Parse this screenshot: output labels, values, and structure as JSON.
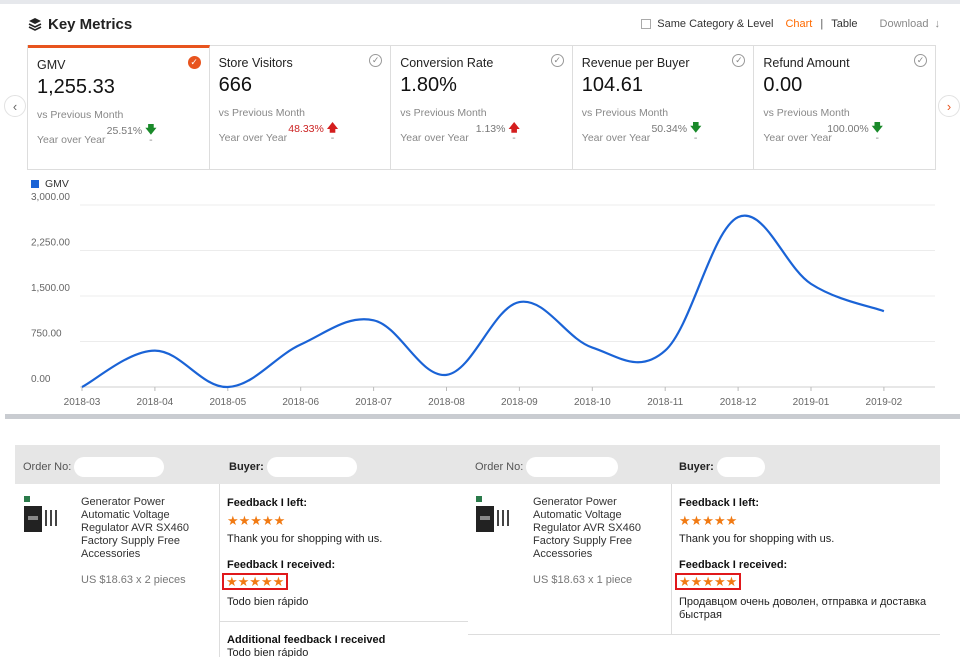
{
  "header": {
    "title": "Key Metrics",
    "same_category_label": "Same Category & Level",
    "chart_tab": "Chart",
    "separator": "|",
    "table_tab": "Table",
    "download_label": "Download",
    "download_icon": "↓"
  },
  "nav": {
    "left_icon": "‹",
    "right_icon": "›"
  },
  "cards": [
    {
      "name": "GMV",
      "value": "1,255.33",
      "vs_label": "vs Previous Month",
      "pct": "25.51%",
      "trend": "down",
      "yoy_label": "Year over Year",
      "yoy_value": "-",
      "selected": true,
      "check": "✓"
    },
    {
      "name": "Store Visitors",
      "value": "666",
      "vs_label": "vs Previous Month",
      "pct": "48.33%",
      "trend": "up",
      "yoy_label": "Year over Year",
      "yoy_value": "-",
      "selected": false,
      "check": "✓"
    },
    {
      "name": "Conversion Rate",
      "value": "1.80%",
      "vs_label": "vs Previous Month",
      "pct": "1.13%",
      "trend": "up",
      "yoy_label": "Year over Year",
      "yoy_value": "-",
      "selected": false,
      "check": "✓"
    },
    {
      "name": "Revenue per Buyer",
      "value": "104.61",
      "vs_label": "vs Previous Month",
      "pct": "50.34%",
      "trend": "down",
      "yoy_label": "Year over Year",
      "yoy_value": "-",
      "selected": false,
      "check": "✓"
    },
    {
      "name": "Refund Amount",
      "value": "0.00",
      "vs_label": "vs Previous Month",
      "pct": "100.00%",
      "trend": "down",
      "yoy_label": "Year over Year",
      "yoy_value": "-",
      "selected": false,
      "check": "✓"
    }
  ],
  "chart_data": {
    "type": "line",
    "x": [
      "2018-03",
      "2018-04",
      "2018-05",
      "2018-06",
      "2018-07",
      "2018-08",
      "2018-09",
      "2018-10",
      "2018-11",
      "2018-12",
      "2019-01",
      "2019-02"
    ],
    "series": [
      {
        "name": "GMV",
        "values": [
          0,
          600,
          0,
          700,
          1100,
          200,
          1400,
          650,
          600,
          2800,
          1700,
          1250
        ]
      }
    ],
    "yticks": [
      "0.00",
      "750.00",
      "1,500.00",
      "2,250.00",
      "3,000.00"
    ],
    "ylim": [
      0,
      3000
    ],
    "grid": true,
    "legend": "top-left",
    "color": "#1a63d6"
  },
  "orders_header": {
    "order_no_label": "Order No:",
    "buyer_label": "Buyer:"
  },
  "orders": [
    {
      "product_name": "Generator Power Automatic Voltage Regulator AVR SX460 Factory Supply Free Accessories",
      "price": "US $18.63 x 2 pieces",
      "feedback_left_label": "Feedback I left:",
      "feedback_left_stars": "★★★★★",
      "feedback_left_text": "Thank you for shopping with us.",
      "feedback_received_label": "Feedback I received:",
      "feedback_received_stars": "★★★★★",
      "feedback_received_text": "Todo bien rápido",
      "additional_label": "Additional feedback I received",
      "additional_text": "Todo bien rápido"
    },
    {
      "product_name": "Generator Power Automatic Voltage Regulator AVR SX460 Factory Supply Free Accessories",
      "price": "US $18.63 x 1 piece",
      "feedback_left_label": "Feedback I left:",
      "feedback_left_stars": "★★★★★",
      "feedback_left_text": "Thank you for shopping with us.",
      "feedback_received_label": "Feedback I received:",
      "feedback_received_stars": "★★★★★",
      "feedback_received_text": "Продавцом очень доволен, отправка и доставка быстрая"
    }
  ]
}
